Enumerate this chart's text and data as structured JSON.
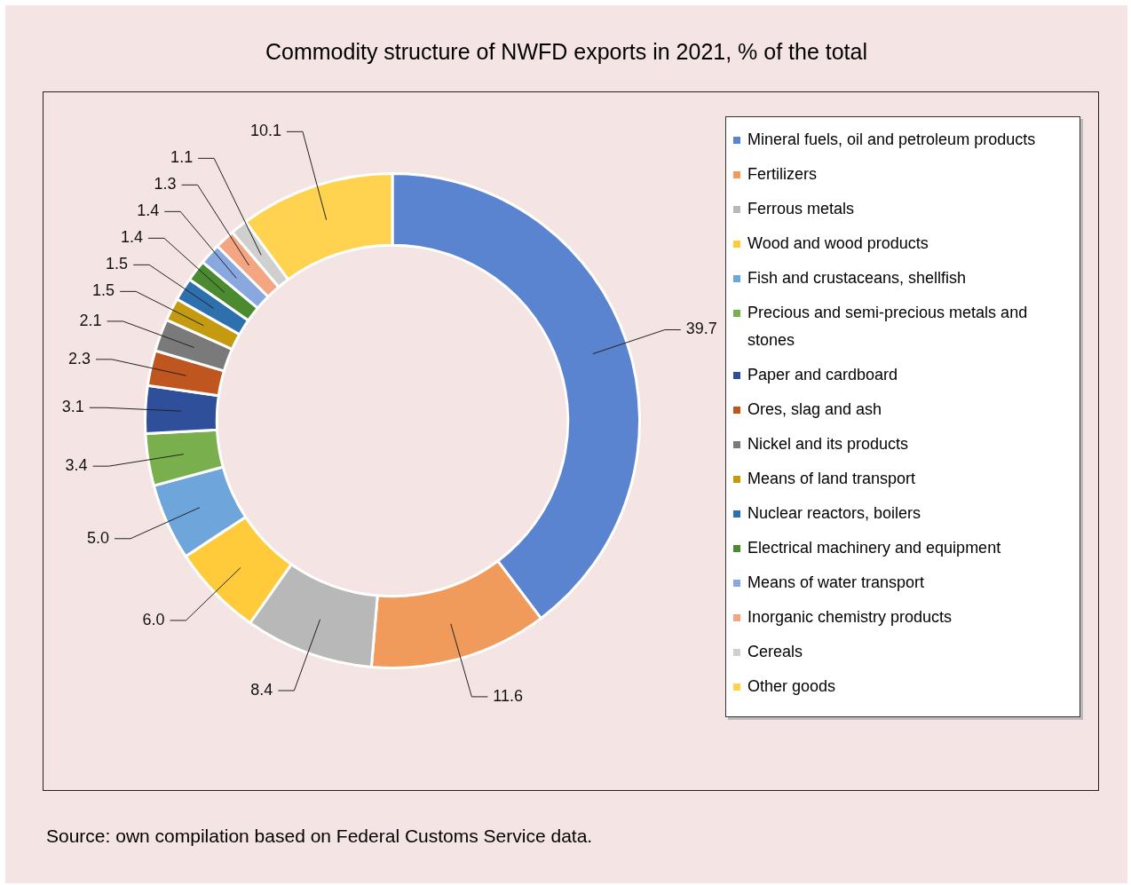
{
  "chart_data": {
    "type": "donut",
    "title": "Commodity structure of NWFD exports in 2021, % of the total",
    "categories": [
      "Mineral fuels, oil and petroleum products",
      "Fertilizers",
      "Ferrous metals",
      "Wood and wood products",
      "Fish and crustaceans, shellfish",
      "Precious and semi-precious metals and stones",
      "Paper and cardboard",
      "Ores, slag and ash",
      "Nickel and its products",
      "Means of land transport",
      "Nuclear reactors, boilers",
      "Electrical machinery and equipment",
      "Means of water transport",
      "Inorganic chemistry products",
      "Cereals",
      "Other goods"
    ],
    "values": [
      39.7,
      11.6,
      8.4,
      6.0,
      5.0,
      3.4,
      3.1,
      2.3,
      2.1,
      1.5,
      1.5,
      1.4,
      1.4,
      1.3,
      1.1,
      10.1
    ],
    "colors": [
      "#5b84d0",
      "#f09a5c",
      "#b8b8b8",
      "#ffcb3a",
      "#6ea6dc",
      "#79b04d",
      "#2f4f9a",
      "#c0561f",
      "#7a7a7a",
      "#c49a10",
      "#2e6fae",
      "#4b8a2e",
      "#8aa8e0",
      "#f4a582",
      "#cfcfcf",
      "#ffd34f"
    ],
    "value_labels": [
      "39.7",
      "11.6",
      "8.4",
      "6.0",
      "5.0",
      "3.4",
      "3.1",
      "2.3",
      "2.1",
      "1.5",
      "1.5",
      "1.4",
      "1.4",
      "1.3",
      "1.1",
      "10.1"
    ],
    "legend": "right",
    "annotations": [
      "Source: own compilation based on Federal Customs Service data."
    ]
  }
}
